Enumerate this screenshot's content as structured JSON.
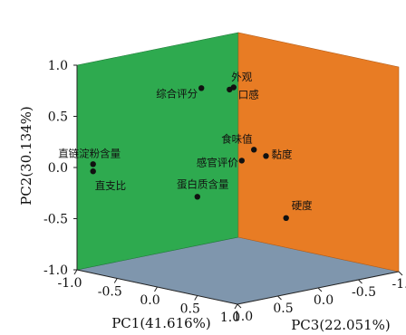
{
  "chart_data": {
    "type": "scatter",
    "projection": "3d",
    "title": "",
    "xlabel": "PC1(41.616%)",
    "ylabel": "PC2(30.134%)",
    "zlabel": "PC3(22.051%)",
    "xlim": [
      -1.0,
      1.0
    ],
    "ylim": [
      -1.0,
      1.0
    ],
    "zlim": [
      -1.0,
      1.0
    ],
    "pc1_ticks": [
      "-1.0",
      "-0.5",
      "0.0",
      "0.5",
      "1.0"
    ],
    "pc2_ticks": [
      "1.0",
      "0.5",
      "0.0",
      "-0.5",
      "-1.0"
    ],
    "pc3_ticks": [
      "1.0",
      "0.5",
      "0.0",
      "-0.5",
      "-1.0"
    ],
    "points": [
      {
        "name": "外观",
        "pc1": 0.65,
        "pc2": 1.0,
        "pc3": 0.75
      },
      {
        "name": "口感",
        "pc1": 0.55,
        "pc2": 0.98,
        "pc3": 0.6
      },
      {
        "name": "综合评分",
        "pc1": 0.5,
        "pc2": 1.02,
        "pc3": 0.95
      },
      {
        "name": "食味值",
        "pc1": 0.3,
        "pc2": 0.25,
        "pc3": 0.1
      },
      {
        "name": "黏度",
        "pc1": 0.35,
        "pc2": 0.18,
        "pc3": 0.0
      },
      {
        "name": "感官评价",
        "pc1": 0.25,
        "pc2": 0.15,
        "pc3": 0.2
      },
      {
        "name": "硬度",
        "pc1": 0.4,
        "pc2": -0.45,
        "pc3": -0.2
      },
      {
        "name": "蛋白质含量",
        "pc1": 0.45,
        "pc2": -0.05,
        "pc3": 0.95
      },
      {
        "name": "直链淀粉含量",
        "pc1": -0.85,
        "pc2": 0.05,
        "pc3": 0.95
      },
      {
        "name": "直支比",
        "pc1": -0.85,
        "pc2": -0.02,
        "pc3": 0.95
      }
    ],
    "panes": {
      "left": "#2eaa4f",
      "back": "#e87c24",
      "floor": "#7f96ad"
    },
    "marker_color": "#111111",
    "grid": false
  }
}
